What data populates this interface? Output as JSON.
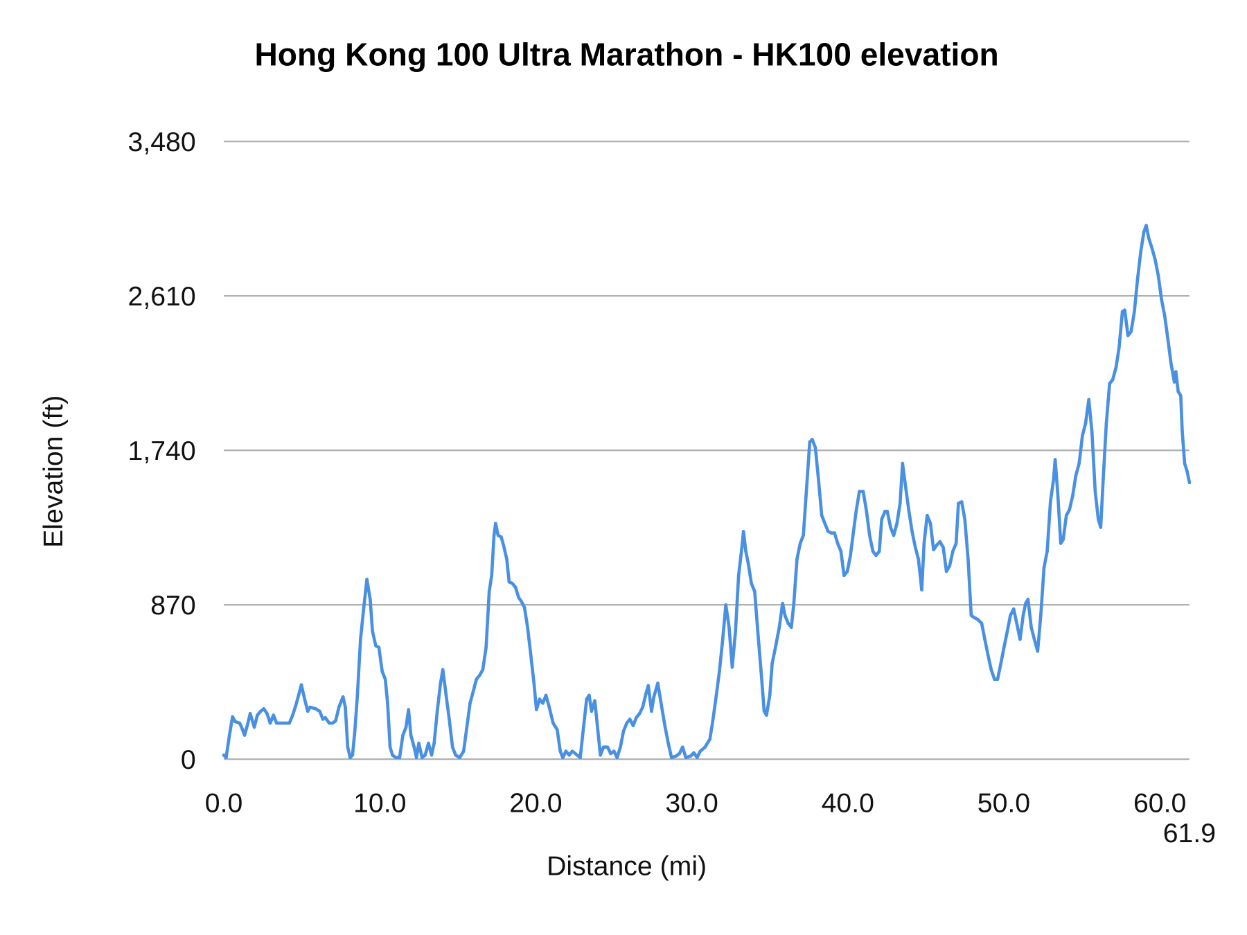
{
  "chart_data": {
    "type": "line",
    "title": "Hong Kong 100 Ultra Marathon - HK100 elevation",
    "xlabel": "Distance (mi)",
    "ylabel": "Elevation (ft)",
    "xlim": [
      0,
      61.9
    ],
    "ylim": [
      0,
      3480
    ],
    "x_ticks": [
      0,
      10,
      20,
      30,
      40,
      50,
      60,
      61.9
    ],
    "x_tick_labels": [
      "0.0",
      "10.0",
      "20.0",
      "30.0",
      "40.0",
      "50.0",
      "60.0",
      "61.9"
    ],
    "y_ticks": [
      0,
      870,
      1740,
      2610,
      3480
    ],
    "y_tick_labels": [
      "0",
      "870",
      "1,740",
      "2,610",
      "3,480"
    ],
    "grid": "horizontal",
    "legend": "none",
    "line_color": "#4a90e2",
    "grid_color": "#b0b0b0",
    "series": [
      {
        "x": [
          0.0,
          0.15,
          0.36,
          0.56,
          0.72,
          1.02,
          1.18,
          1.33,
          1.54,
          1.69,
          1.95,
          2.15,
          2.36,
          2.56,
          2.77,
          2.97,
          3.18,
          3.38,
          3.84,
          4.2,
          4.41,
          4.61,
          4.82,
          4.97,
          5.18,
          5.38,
          5.53,
          5.89,
          6.15,
          6.35,
          6.51,
          6.76,
          6.97,
          7.17,
          7.38,
          7.64,
          7.79,
          7.94,
          8.1,
          8.25,
          8.4,
          8.56,
          8.76,
          8.97,
          9.17,
          9.38,
          9.53,
          9.74,
          9.94,
          10.15,
          10.35,
          10.5,
          10.66,
          10.81,
          11.02,
          11.27,
          11.48,
          11.68,
          11.84,
          11.99,
          12.2,
          12.35,
          12.5,
          12.71,
          12.91,
          13.12,
          13.32,
          13.48,
          13.68,
          13.89,
          14.04,
          14.25,
          14.45,
          14.66,
          14.86,
          15.12,
          15.37,
          15.58,
          15.78,
          15.99,
          16.19,
          16.4,
          16.6,
          16.81,
          17.01,
          17.17,
          17.32,
          17.42,
          17.58,
          17.78,
          17.94,
          18.14,
          18.29,
          18.5,
          18.7,
          18.91,
          19.06,
          19.27,
          19.47,
          19.68,
          19.88,
          20.04,
          20.24,
          20.45,
          20.65,
          20.86,
          21.11,
          21.37,
          21.57,
          21.73,
          21.93,
          22.14,
          22.34,
          22.65,
          22.85,
          23.06,
          23.26,
          23.42,
          23.57,
          23.78,
          23.98,
          24.14,
          24.34,
          24.6,
          24.8,
          25.01,
          25.21,
          25.42,
          25.62,
          25.83,
          26.03,
          26.24,
          26.44,
          26.65,
          26.85,
          27.06,
          27.21,
          27.42,
          27.57,
          27.82,
          28.03,
          28.29,
          28.49,
          28.7,
          29.0,
          29.21,
          29.41,
          29.62,
          29.93,
          30.13,
          30.34,
          30.54,
          30.85,
          31.16,
          31.36,
          31.57,
          31.77,
          31.98,
          32.18,
          32.39,
          32.59,
          32.8,
          33.0,
          33.21,
          33.31,
          33.46,
          33.62,
          33.82,
          34.03,
          34.23,
          34.44,
          34.64,
          34.79,
          35.0,
          35.15,
          35.36,
          35.61,
          35.82,
          35.97,
          36.18,
          36.38,
          36.54,
          36.74,
          36.95,
          37.15,
          37.36,
          37.56,
          37.72,
          37.92,
          38.12,
          38.33,
          38.53,
          38.74,
          38.94,
          39.15,
          39.35,
          39.56,
          39.76,
          39.97,
          40.17,
          40.33,
          40.53,
          40.74,
          40.99,
          41.2,
          41.4,
          41.61,
          41.81,
          42.02,
          42.17,
          42.38,
          42.53,
          42.74,
          42.94,
          43.15,
          43.35,
          43.51,
          43.71,
          43.92,
          44.12,
          44.33,
          44.53,
          44.74,
          44.89,
          45.09,
          45.3,
          45.5,
          45.71,
          45.91,
          46.12,
          46.32,
          46.53,
          46.73,
          46.94,
          47.09,
          47.3,
          47.5,
          47.71,
          47.91,
          48.12,
          48.32,
          48.58,
          48.78,
          48.99,
          49.19,
          49.4,
          49.6,
          49.81,
          50.01,
          50.22,
          50.42,
          50.63,
          50.83,
          51.04,
          51.24,
          51.4,
          51.55,
          51.76,
          51.96,
          52.17,
          52.37,
          52.58,
          52.78,
          52.99,
          53.19,
          53.29,
          53.45,
          53.65,
          53.81,
          54.01,
          54.21,
          54.42,
          54.62,
          54.83,
          55.04,
          55.24,
          55.45,
          55.65,
          55.86,
          56.06,
          56.21,
          56.37,
          56.57,
          56.78,
          56.98,
          57.19,
          57.39,
          57.6,
          57.75,
          57.96,
          58.16,
          58.37,
          58.57,
          58.78,
          58.98,
          59.13,
          59.29,
          59.49,
          59.7,
          59.9,
          60.11,
          60.31,
          60.52,
          60.72,
          60.93,
          61.03,
          61.18,
          61.34,
          61.44,
          61.59,
          61.75,
          61.9
        ],
        "y": [
          23,
          9,
          135,
          239,
          212,
          203,
          171,
          135,
          203,
          257,
          180,
          248,
          270,
          284,
          257,
          203,
          248,
          203,
          203,
          203,
          248,
          302,
          369,
          419,
          338,
          270,
          293,
          284,
          270,
          225,
          234,
          203,
          203,
          216,
          293,
          351,
          293,
          68,
          9,
          23,
          158,
          360,
          675,
          855,
          1013,
          900,
          720,
          639,
          630,
          495,
          450,
          315,
          68,
          23,
          9,
          9,
          135,
          180,
          279,
          135,
          68,
          9,
          90,
          9,
          23,
          90,
          23,
          90,
          270,
          428,
          504,
          360,
          225,
          68,
          23,
          9,
          45,
          180,
          315,
          383,
          450,
          473,
          504,
          630,
          945,
          1035,
          1261,
          1328,
          1261,
          1252,
          1202,
          1126,
          999,
          990,
          968,
          909,
          891,
          855,
          743,
          585,
          428,
          279,
          338,
          315,
          360,
          293,
          203,
          167,
          45,
          9,
          45,
          23,
          45,
          23,
          9,
          180,
          338,
          360,
          270,
          329,
          158,
          23,
          68,
          68,
          32,
          45,
          9,
          68,
          158,
          203,
          225,
          189,
          234,
          257,
          293,
          369,
          414,
          270,
          351,
          428,
          315,
          180,
          90,
          9,
          18,
          32,
          68,
          9,
          18,
          36,
          9,
          45,
          68,
          113,
          225,
          360,
          495,
          675,
          869,
          743,
          518,
          720,
          1035,
          1193,
          1283,
          1171,
          1103,
          990,
          945,
          720,
          495,
          270,
          248,
          360,
          540,
          630,
          743,
          878,
          810,
          765,
          743,
          878,
          1126,
          1216,
          1261,
          1531,
          1787,
          1801,
          1756,
          1576,
          1373,
          1328,
          1283,
          1274,
          1274,
          1216,
          1171,
          1035,
          1058,
          1148,
          1261,
          1396,
          1508,
          1508,
          1396,
          1261,
          1171,
          1148,
          1171,
          1351,
          1396,
          1396,
          1306,
          1261,
          1328,
          1441,
          1666,
          1531,
          1396,
          1283,
          1193,
          1126,
          954,
          1216,
          1373,
          1328,
          1180,
          1207,
          1225,
          1193,
          1058,
          1089,
          1171,
          1216,
          1441,
          1450,
          1351,
          1126,
          810,
          797,
          788,
          765,
          675,
          585,
          504,
          450,
          450,
          540,
          630,
          720,
          810,
          846,
          765,
          675,
          810,
          878,
          900,
          743,
          675,
          608,
          810,
          1080,
          1171,
          1450,
          1576,
          1688,
          1508,
          1216,
          1238,
          1373,
          1405,
          1486,
          1598,
          1666,
          1823,
          1891,
          2026,
          1846,
          1508,
          1351,
          1306,
          1576,
          1891,
          2116,
          2138,
          2206,
          2319,
          2521,
          2530,
          2386,
          2409,
          2521,
          2701,
          2859,
          2971,
          3007,
          2935,
          2881,
          2814,
          2724,
          2589,
          2499,
          2364,
          2228,
          2125,
          2183,
          2071,
          2048,
          1846,
          1666,
          1621,
          1558
        ]
      }
    ]
  }
}
